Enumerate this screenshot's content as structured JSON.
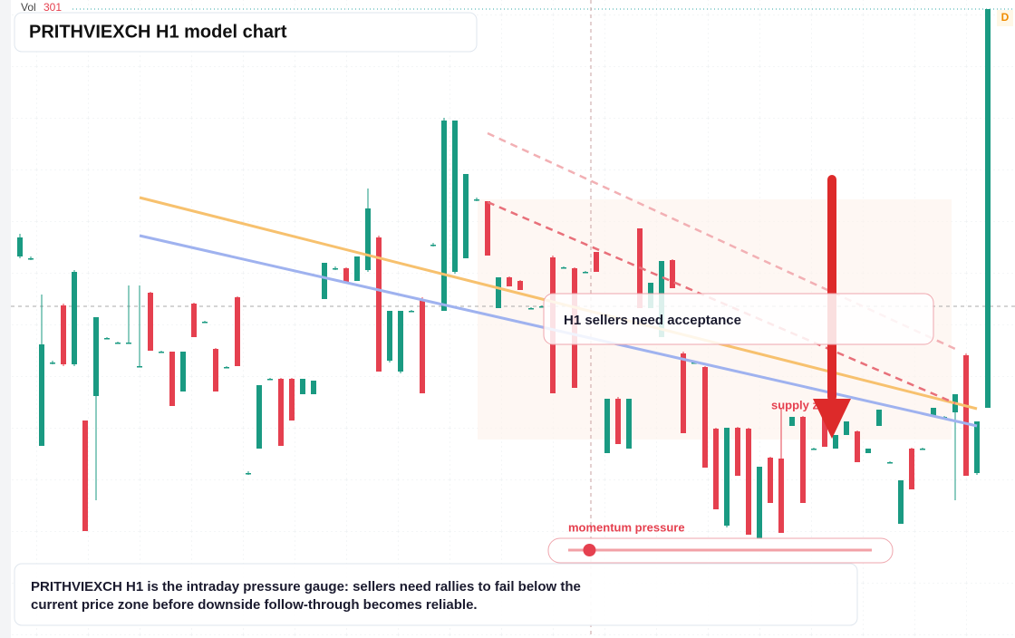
{
  "chart_data": {
    "type": "candlestick",
    "title": "PRITHVIEXCH H1 model chart",
    "volume_label": "Vol",
    "volume_value": 301,
    "timeframe_badge": "D",
    "ylim": [
      0,
      700
    ],
    "up_color": "#1a9a82",
    "down_color": "#e5404f",
    "candles": [
      [
        417,
        442,
        415,
        438
      ],
      [
        415,
        417,
        413,
        415
      ],
      [
        208,
        375,
        208,
        320
      ],
      [
        300,
        302,
        298,
        300
      ],
      [
        363,
        365,
        296,
        298
      ],
      [
        298,
        402,
        296,
        400
      ],
      [
        236,
        236,
        114,
        114
      ],
      [
        263,
        350,
        148,
        350
      ],
      [
        327,
        328,
        326,
        327
      ],
      [
        322,
        323,
        321,
        322
      ],
      [
        322,
        385,
        321,
        322
      ],
      [
        296,
        385,
        295,
        296
      ],
      [
        377,
        378,
        313,
        313
      ],
      [
        312,
        313,
        311,
        312
      ],
      [
        312,
        312,
        252,
        252
      ],
      [
        268,
        312,
        268,
        312
      ],
      [
        365,
        366,
        328,
        328
      ],
      [
        345,
        346,
        344,
        345
      ],
      [
        315,
        316,
        268,
        268
      ],
      [
        295,
        296,
        294,
        295
      ],
      [
        372,
        373,
        296,
        296
      ],
      [
        178,
        180,
        176,
        178
      ],
      [
        205,
        275,
        205,
        275
      ],
      [
        282,
        283,
        281,
        282
      ],
      [
        282,
        283,
        208,
        208
      ],
      [
        282,
        283,
        236,
        236
      ],
      [
        265,
        282,
        265,
        282
      ],
      [
        265,
        280,
        265,
        280
      ],
      [
        370,
        410,
        370,
        410
      ],
      [
        404,
        406,
        402,
        404
      ],
      [
        404,
        405,
        388,
        388
      ],
      [
        390,
        417,
        390,
        417
      ],
      [
        402,
        492,
        400,
        470
      ],
      [
        438,
        440,
        290,
        290
      ],
      [
        302,
        357,
        300,
        357
      ],
      [
        290,
        357,
        288,
        357
      ],
      [
        357,
        358,
        356,
        357
      ],
      [
        370,
        372,
        266,
        266
      ],
      [
        430,
        432,
        428,
        430
      ],
      [
        357,
        570,
        357,
        567
      ],
      [
        400,
        567,
        398,
        567
      ],
      [
        415,
        508,
        415,
        508
      ],
      [
        480,
        482,
        478,
        480
      ],
      [
        478,
        478,
        418,
        418
      ],
      [
        360,
        394,
        360,
        394
      ],
      [
        394,
        395,
        384,
        384
      ],
      [
        390,
        391,
        380,
        380
      ],
      [
        360,
        361,
        359,
        360
      ],
      [
        362,
        363,
        361,
        362
      ],
      [
        416,
        418,
        266,
        266
      ],
      [
        405,
        406,
        404,
        405
      ],
      [
        404,
        405,
        272,
        272
      ],
      [
        400,
        401,
        399,
        400
      ],
      [
        422,
        422,
        400,
        400
      ],
      [
        200,
        260,
        200,
        260
      ],
      [
        260,
        262,
        210,
        210
      ],
      [
        205,
        260,
        205,
        260
      ],
      [
        448,
        448,
        360,
        360
      ],
      [
        360,
        388,
        360,
        388
      ],
      [
        328,
        412,
        328,
        412
      ],
      [
        413,
        414,
        382,
        382
      ],
      [
        310,
        312,
        222,
        222
      ],
      [
        300,
        301,
        299,
        300
      ],
      [
        295,
        296,
        184,
        184
      ],
      [
        227,
        228,
        138,
        138
      ],
      [
        120,
        228,
        118,
        228
      ],
      [
        228,
        229,
        175,
        175
      ],
      [
        227,
        228,
        110,
        110
      ],
      [
        105,
        185,
        105,
        185
      ],
      [
        195,
        196,
        145,
        145
      ],
      [
        194,
        250,
        112,
        112
      ],
      [
        230,
        240,
        230,
        240
      ],
      [
        240,
        241,
        145,
        145
      ],
      [
        205,
        206,
        204,
        205
      ],
      [
        250,
        251,
        207,
        207
      ],
      [
        205,
        220,
        205,
        220
      ],
      [
        220,
        235,
        220,
        235
      ],
      [
        224,
        225,
        190,
        190
      ],
      [
        200,
        205,
        200,
        205
      ],
      [
        230,
        248,
        230,
        248
      ],
      [
        190,
        191,
        189,
        190
      ],
      [
        122,
        170,
        122,
        170
      ],
      [
        205,
        206,
        160,
        160
      ],
      [
        205,
        206,
        204,
        205
      ],
      [
        240,
        250,
        240,
        250
      ],
      [
        240,
        241,
        239,
        240
      ],
      [
        245,
        265,
        148,
        265
      ],
      [
        308,
        310,
        175,
        175
      ],
      [
        178,
        235,
        176,
        235
      ],
      [
        250,
        690,
        250,
        690
      ]
    ],
    "trendlines": [
      {
        "color": "#f7c16e",
        "dashed": false,
        "x": [
          11,
          88
        ],
        "y": [
          482,
          249
        ]
      },
      {
        "color": "#9fb2ef",
        "dashed": false,
        "x": [
          11,
          88
        ],
        "y": [
          440,
          230
        ]
      },
      {
        "color": "#e8707a",
        "dashed": true,
        "x": [
          43,
          86
        ],
        "y": [
          477,
          255
        ]
      },
      {
        "color": "#f2b0b4",
        "dashed": true,
        "x": [
          43,
          86
        ],
        "y": [
          553,
          315
        ]
      }
    ],
    "callout": "H1 sellers need acceptance",
    "zone_label": "supply zone",
    "gauge": {
      "label": "momentum pressure",
      "value": 7,
      "range": [
        0,
        100
      ]
    },
    "caption": [
      "PRITHVIEXCH H1 is the intraday pressure gauge: sellers need rallies to fail below the",
      "current price zone before downside follow-through becomes reliable."
    ]
  }
}
